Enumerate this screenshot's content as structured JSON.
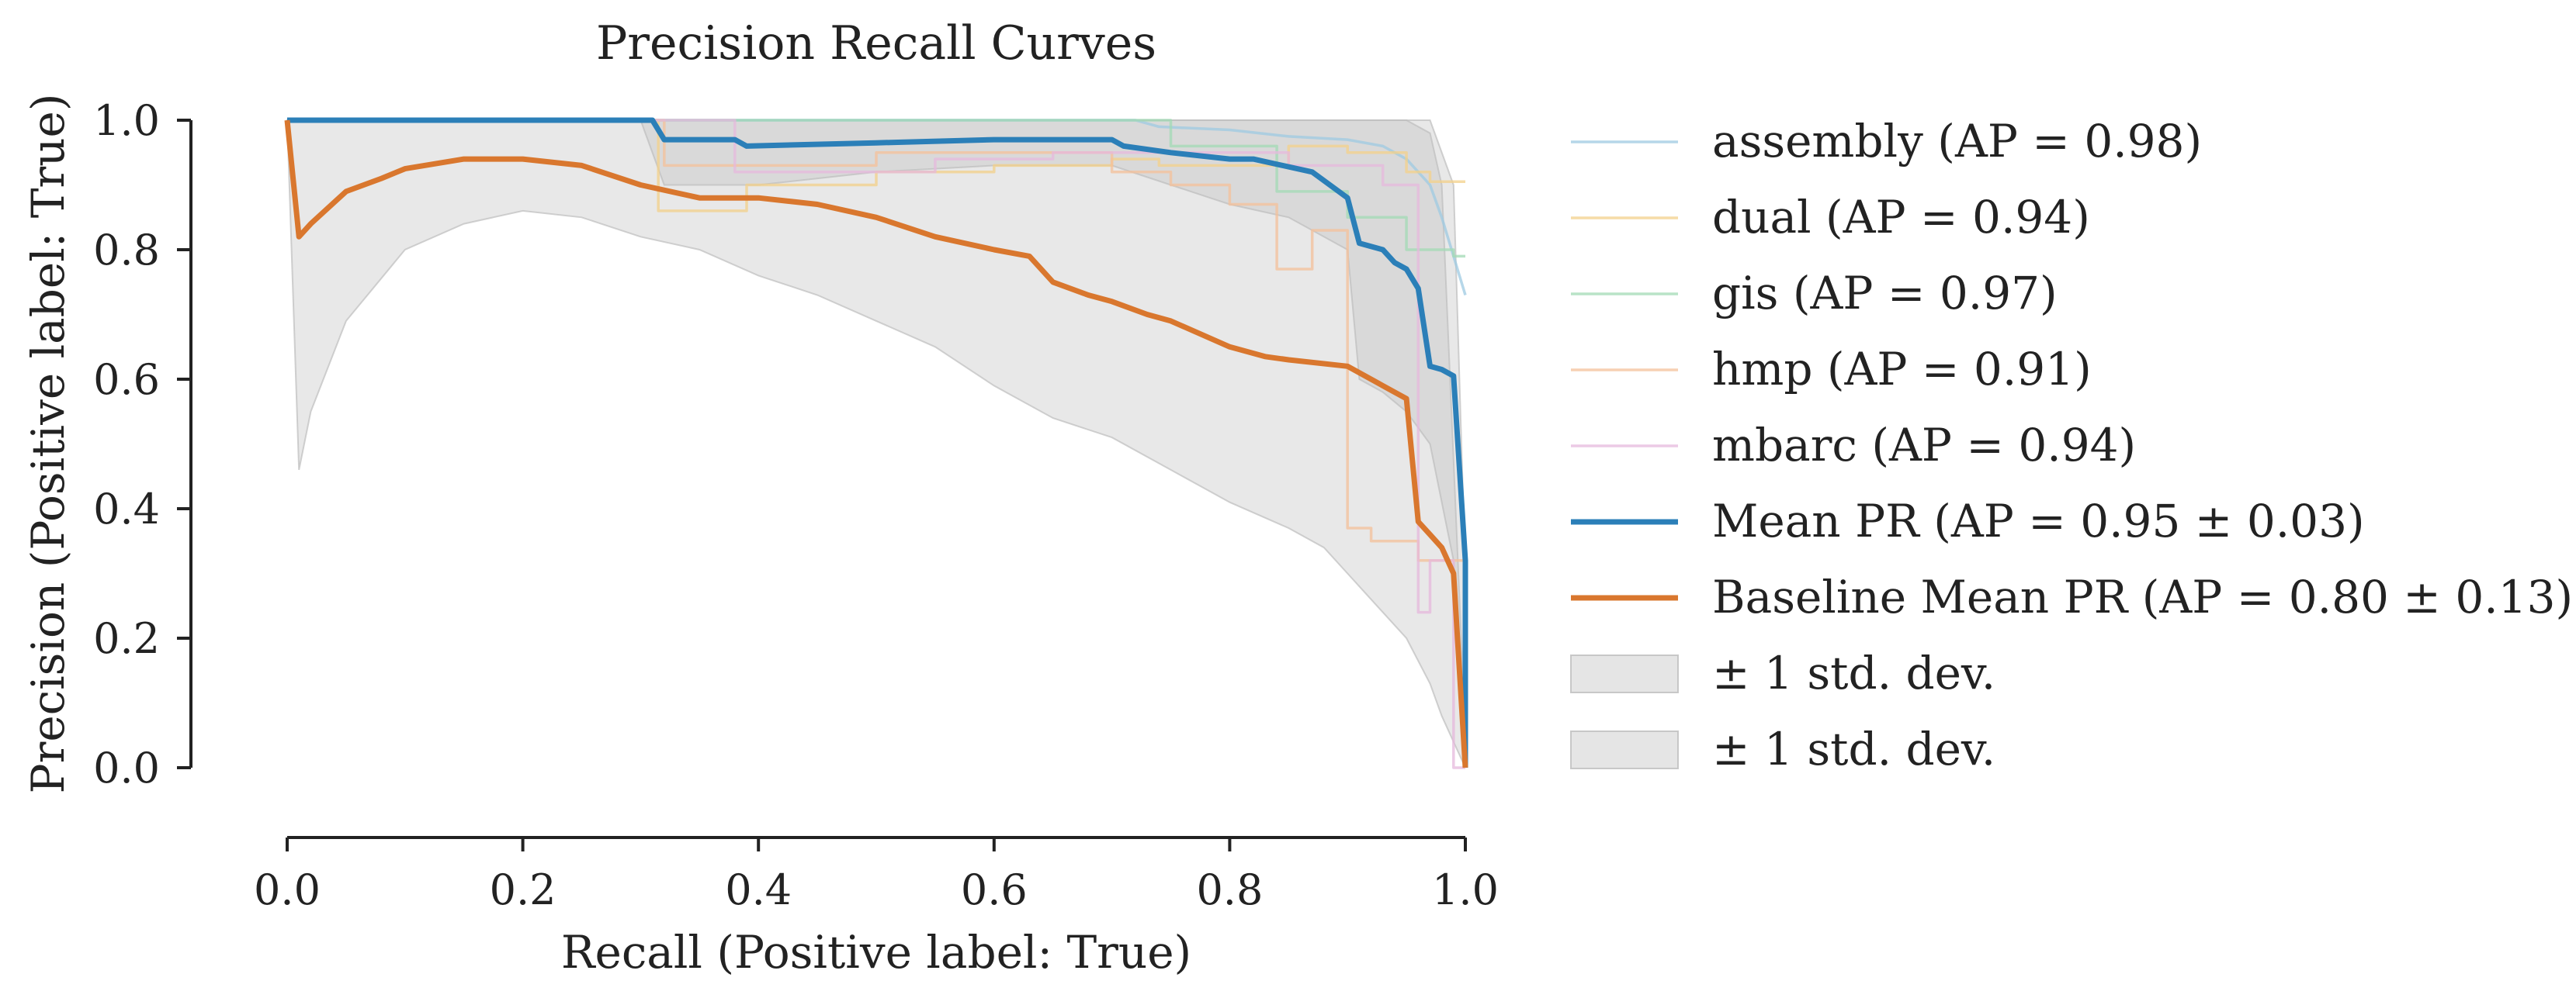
{
  "chart_data": {
    "type": "line",
    "title": "Precision Recall Curves",
    "xlabel": "Recall (Positive label: True)",
    "ylabel": "Precision (Positive label: True)",
    "xlim": [
      0.0,
      1.0
    ],
    "ylim": [
      0.0,
      1.0
    ],
    "xticks": [
      "0.0",
      "0.2",
      "0.4",
      "0.6",
      "0.8",
      "1.0"
    ],
    "yticks": [
      "0.0",
      "0.2",
      "0.4",
      "0.6",
      "0.8",
      "1.0"
    ],
    "grid": false,
    "legend_position": "outside-right",
    "series": [
      {
        "name": "assembly (AP = 0.98)",
        "color": "#9ecae1",
        "role": "fold",
        "x": [
          0.0,
          0.72,
          0.74,
          0.8,
          0.85,
          0.9,
          0.93,
          0.95,
          0.97,
          0.98,
          0.99,
          1.0
        ],
        "y": [
          1.0,
          1.0,
          0.99,
          0.985,
          0.975,
          0.97,
          0.96,
          0.94,
          0.9,
          0.85,
          0.79,
          0.73
        ]
      },
      {
        "name": "dual (AP = 0.94)",
        "color": "#f3d08a",
        "role": "fold",
        "x": [
          0.0,
          0.315,
          0.315,
          0.39,
          0.39,
          0.5,
          0.5,
          0.6,
          0.6,
          0.7,
          0.7,
          0.74,
          0.74,
          0.85,
          0.85,
          0.9,
          0.9,
          0.95,
          0.95,
          0.97,
          0.97,
          1.0
        ],
        "y": [
          1.0,
          1.0,
          0.86,
          0.86,
          0.9,
          0.9,
          0.92,
          0.92,
          0.93,
          0.93,
          0.94,
          0.94,
          0.93,
          0.93,
          0.96,
          0.96,
          0.95,
          0.95,
          0.92,
          0.92,
          0.905,
          0.905
        ]
      },
      {
        "name": "gis (AP = 0.97)",
        "color": "#a1dab4",
        "role": "fold",
        "x": [
          0.0,
          0.75,
          0.75,
          0.84,
          0.84,
          0.9,
          0.9,
          0.95,
          0.95,
          0.99,
          0.99,
          1.0
        ],
        "y": [
          1.0,
          1.0,
          0.96,
          0.96,
          0.89,
          0.89,
          0.85,
          0.85,
          0.8,
          0.8,
          0.79,
          0.79
        ]
      },
      {
        "name": "hmp (AP = 0.91)",
        "color": "#f4c09a",
        "role": "fold",
        "x": [
          0.0,
          0.32,
          0.32,
          0.5,
          0.5,
          0.7,
          0.7,
          0.75,
          0.75,
          0.8,
          0.8,
          0.84,
          0.84,
          0.87,
          0.87,
          0.9,
          0.9,
          0.92,
          0.92,
          0.96,
          0.96,
          1.0,
          1.0
        ],
        "y": [
          1.0,
          1.0,
          0.93,
          0.93,
          0.95,
          0.95,
          0.92,
          0.92,
          0.9,
          0.9,
          0.87,
          0.87,
          0.77,
          0.77,
          0.83,
          0.83,
          0.37,
          0.37,
          0.35,
          0.35,
          0.32,
          0.32,
          0.0
        ]
      },
      {
        "name": "mbarc (AP = 0.94)",
        "color": "#e6b8dc",
        "role": "fold",
        "x": [
          0.0,
          0.38,
          0.38,
          0.55,
          0.55,
          0.65,
          0.65,
          0.85,
          0.85,
          0.93,
          0.93,
          0.96,
          0.96,
          0.97,
          0.97,
          0.99,
          0.99,
          1.0
        ],
        "y": [
          1.0,
          1.0,
          0.92,
          0.92,
          0.94,
          0.94,
          0.95,
          0.95,
          0.93,
          0.93,
          0.9,
          0.9,
          0.24,
          0.24,
          0.32,
          0.32,
          0.0,
          0.0
        ]
      },
      {
        "name": "Mean PR (AP = 0.95 ± 0.03)",
        "color": "#2b7fb8",
        "role": "mean",
        "x": [
          0.0,
          0.2,
          0.31,
          0.32,
          0.35,
          0.38,
          0.39,
          0.5,
          0.6,
          0.65,
          0.7,
          0.71,
          0.75,
          0.8,
          0.82,
          0.87,
          0.9,
          0.91,
          0.93,
          0.94,
          0.95,
          0.96,
          0.97,
          0.98,
          0.99,
          1.0,
          1.0
        ],
        "y": [
          1.0,
          1.0,
          1.0,
          0.97,
          0.97,
          0.97,
          0.96,
          0.965,
          0.97,
          0.97,
          0.97,
          0.96,
          0.95,
          0.94,
          0.94,
          0.92,
          0.88,
          0.81,
          0.8,
          0.78,
          0.77,
          0.74,
          0.62,
          0.615,
          0.605,
          0.32,
          0.0
        ]
      },
      {
        "name": "Baseline Mean PR (AP = 0.80 ± 0.13)",
        "color": "#d9772e",
        "role": "mean",
        "x": [
          0.0,
          0.01,
          0.02,
          0.05,
          0.08,
          0.1,
          0.15,
          0.2,
          0.25,
          0.3,
          0.35,
          0.4,
          0.45,
          0.5,
          0.55,
          0.6,
          0.63,
          0.65,
          0.68,
          0.7,
          0.73,
          0.75,
          0.8,
          0.83,
          0.85,
          0.9,
          0.93,
          0.95,
          0.96,
          0.97,
          0.98,
          0.99,
          1.0
        ],
        "y": [
          1.0,
          0.82,
          0.84,
          0.89,
          0.91,
          0.925,
          0.94,
          0.94,
          0.93,
          0.9,
          0.88,
          0.88,
          0.87,
          0.85,
          0.82,
          0.8,
          0.79,
          0.75,
          0.73,
          0.72,
          0.7,
          0.69,
          0.65,
          0.635,
          0.63,
          0.62,
          0.59,
          0.57,
          0.38,
          0.36,
          0.34,
          0.3,
          0.0
        ]
      }
    ],
    "bands": [
      {
        "name": "± 1 std. dev.",
        "color": "#bdbdbd",
        "x": [
          0.0,
          0.3,
          0.32,
          0.4,
          0.5,
          0.6,
          0.7,
          0.75,
          0.8,
          0.85,
          0.9,
          0.91,
          0.93,
          0.95,
          0.97,
          0.99,
          1.0
        ],
        "upper": [
          1.0,
          1.0,
          1.0,
          1.0,
          1.0,
          1.0,
          1.0,
          1.0,
          1.0,
          1.0,
          1.0,
          1.0,
          1.0,
          1.0,
          1.0,
          0.9,
          0.3
        ],
        "lower": [
          1.0,
          1.0,
          0.9,
          0.9,
          0.92,
          0.93,
          0.93,
          0.9,
          0.87,
          0.85,
          0.8,
          0.6,
          0.58,
          0.55,
          0.5,
          0.32,
          0.0
        ]
      },
      {
        "name": "± 1 std. dev.",
        "color": "#bdbdbd",
        "x": [
          0.0,
          0.01,
          0.02,
          0.05,
          0.1,
          0.15,
          0.2,
          0.25,
          0.3,
          0.35,
          0.4,
          0.45,
          0.5,
          0.55,
          0.6,
          0.65,
          0.7,
          0.75,
          0.8,
          0.85,
          0.88,
          0.9,
          0.93,
          0.95,
          0.97,
          0.98,
          1.0
        ],
        "upper": [
          1.0,
          1.0,
          1.0,
          1.0,
          1.0,
          1.0,
          1.0,
          1.0,
          1.0,
          1.0,
          1.0,
          1.0,
          1.0,
          1.0,
          1.0,
          1.0,
          1.0,
          1.0,
          1.0,
          1.0,
          1.0,
          1.0,
          1.0,
          1.0,
          0.98,
          0.9,
          0.05
        ],
        "lower": [
          1.0,
          0.46,
          0.55,
          0.69,
          0.8,
          0.84,
          0.86,
          0.85,
          0.82,
          0.8,
          0.76,
          0.73,
          0.69,
          0.65,
          0.59,
          0.54,
          0.51,
          0.46,
          0.41,
          0.37,
          0.34,
          0.3,
          0.24,
          0.2,
          0.13,
          0.08,
          0.0
        ]
      }
    ]
  }
}
